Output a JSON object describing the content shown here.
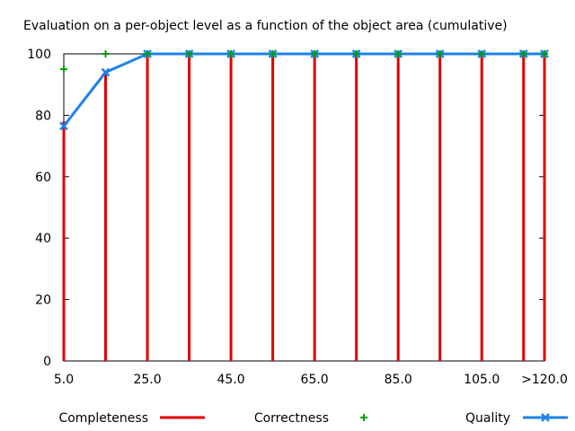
{
  "chart_data": {
    "type": "line",
    "title": "Evaluation on a per-object level as a function of the object area (cumulative)",
    "xlabel": "",
    "ylabel": "",
    "x": [
      5,
      15,
      25,
      35,
      45,
      55,
      65,
      75,
      85,
      95,
      105,
      115,
      120
    ],
    "xlim": [
      5,
      120
    ],
    "ylim": [
      0,
      100
    ],
    "x_tick_values": [
      5,
      25,
      45,
      65,
      85,
      105,
      120
    ],
    "x_tick_labels": [
      "5.0",
      "25.0",
      "45.0",
      "65.0",
      "85.0",
      "105.0",
      ">120.0"
    ],
    "y_ticks": [
      0,
      20,
      40,
      60,
      80,
      100
    ],
    "grid": false,
    "legend_position": "bottom",
    "series": [
      {
        "name": "Completeness",
        "style": "impulses",
        "color": "#e00000",
        "values": [
          78,
          94,
          100,
          100,
          100,
          100,
          100,
          100,
          100,
          100,
          100,
          100,
          100
        ]
      },
      {
        "name": "Correctness",
        "style": "points-plus",
        "color": "#00a000",
        "values": [
          95,
          100,
          100,
          100,
          100,
          100,
          100,
          100,
          100,
          100,
          100,
          100,
          100
        ]
      },
      {
        "name": "Quality",
        "style": "line-points",
        "color": "#1e82ea",
        "values": [
          76.5,
          94,
          100,
          100,
          100,
          100,
          100,
          100,
          100,
          100,
          100,
          100,
          100
        ]
      }
    ]
  }
}
